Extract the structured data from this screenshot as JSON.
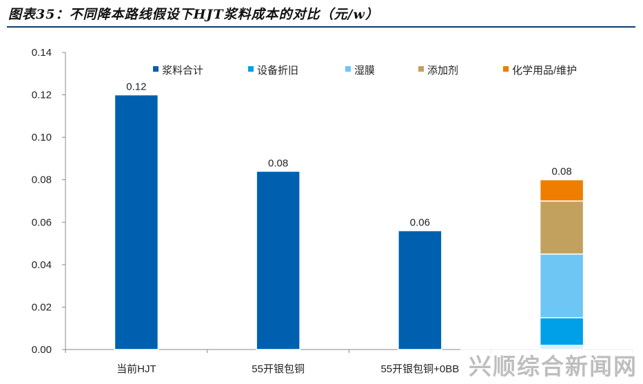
{
  "title": "图表35：不同降本路线假设下HJT浆料成本的对比（元/w）",
  "watermark": "兴顺综合新闻网",
  "chart_data": {
    "type": "bar",
    "categories": [
      "当前HJT",
      "55开银包铜",
      "55开银包铜+0BB",
      ""
    ],
    "ylim": [
      0,
      0.14
    ],
    "yticks": [
      "0.00",
      "0.02",
      "0.04",
      "0.06",
      "0.08",
      "0.10",
      "0.12",
      "0.14"
    ],
    "legend_position": "top",
    "series": [
      {
        "name": "浆料合计",
        "color": "#0060B0",
        "values": [
          0.12,
          0.084,
          0.056,
          0
        ]
      },
      {
        "name": "设备折旧",
        "color": "#00A0E8",
        "values": [
          0,
          0,
          0,
          0.015
        ]
      },
      {
        "name": "湿膜",
        "color": "#6EC6F5",
        "values": [
          0,
          0,
          0,
          0.03
        ]
      },
      {
        "name": "添加剂",
        "color": "#C2A15E",
        "values": [
          0,
          0,
          0,
          0.025
        ]
      },
      {
        "name": "化学用品/维护",
        "color": "#EE7D00",
        "values": [
          0,
          0,
          0,
          0.01
        ]
      }
    ],
    "data_labels": [
      "0.12",
      "0.08",
      "0.06",
      "0.08"
    ]
  }
}
